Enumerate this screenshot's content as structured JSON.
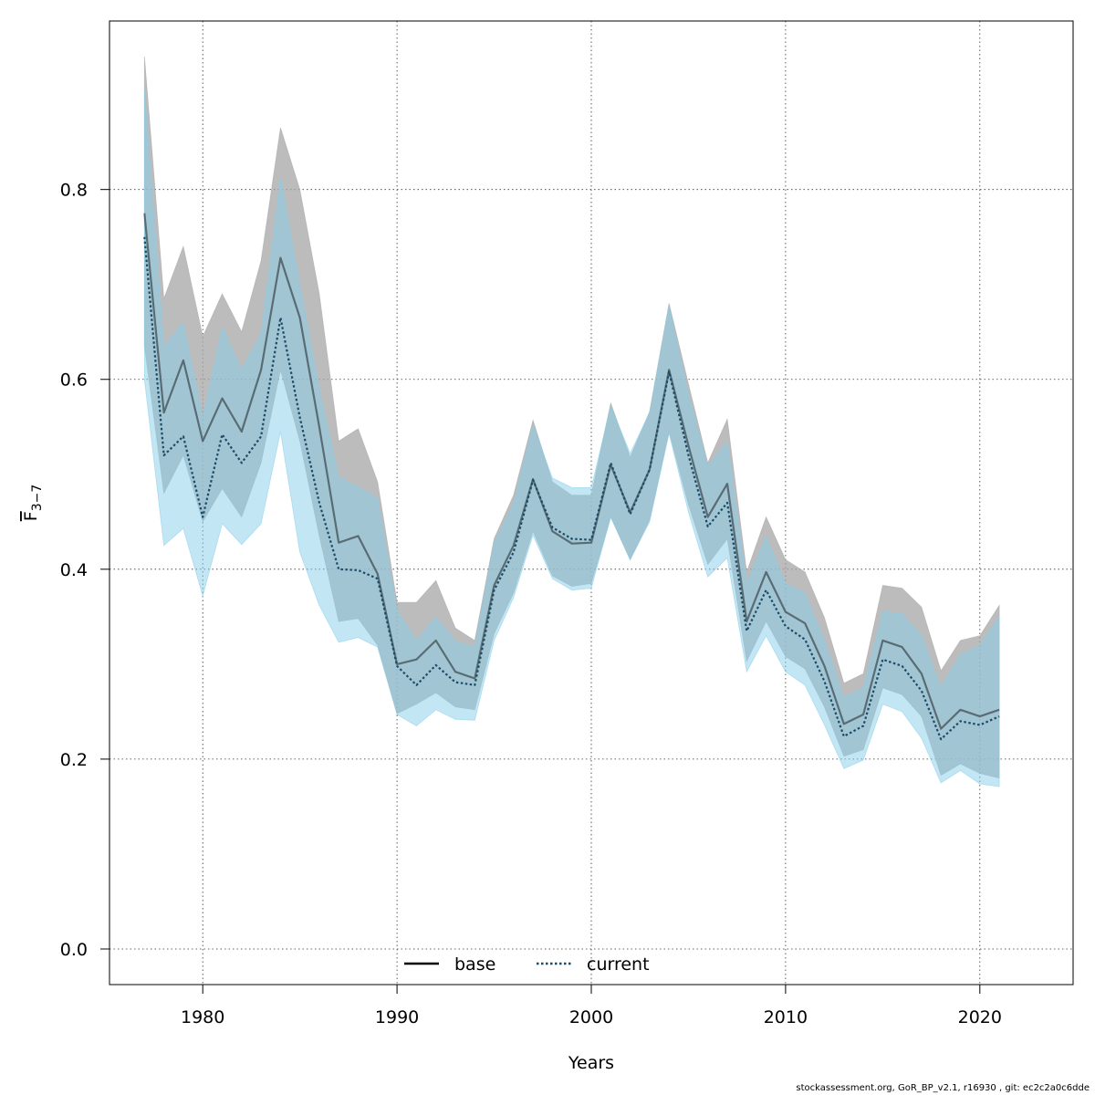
{
  "chart_data": {
    "type": "line",
    "title": "",
    "xlabel": "Years",
    "ylabel_main": "F",
    "ylabel_sub": "3−7",
    "xlim": [
      1975.2,
      2024.8
    ],
    "ylim": [
      -0.0375,
      0.9775
    ],
    "xticks": [
      1980,
      1990,
      2000,
      2010,
      2020
    ],
    "yticks": [
      0.0,
      0.2,
      0.4,
      0.6,
      0.8
    ],
    "ytick_labels": [
      "0.0",
      "0.2",
      "0.4",
      "0.6",
      "0.8"
    ],
    "grid": true,
    "legend": {
      "position": "bottom-center",
      "entries": [
        "base",
        "current"
      ]
    },
    "colors": {
      "base_line": "#000000",
      "base_band": "#a6a6a6",
      "current_line": "#1a4c66",
      "current_band": "#87ceeb"
    },
    "x": [
      1977,
      1978,
      1979,
      1980,
      1981,
      1982,
      1983,
      1984,
      1985,
      1986,
      1987,
      1988,
      1989,
      1990,
      1991,
      1992,
      1993,
      1994,
      1995,
      1996,
      1997,
      1998,
      1999,
      2000,
      2001,
      2002,
      2003,
      2004,
      2005,
      2006,
      2007,
      2008,
      2009,
      2010,
      2011,
      2012,
      2013,
      2014,
      2015,
      2016,
      2017,
      2018,
      2019,
      2020,
      2021
    ],
    "series": [
      {
        "name": "base",
        "style": "solid",
        "values": [
          0.775,
          0.565,
          0.62,
          0.535,
          0.58,
          0.545,
          0.61,
          0.728,
          0.665,
          0.55,
          0.428,
          0.435,
          0.395,
          0.3,
          0.305,
          0.325,
          0.292,
          0.285,
          0.383,
          0.425,
          0.495,
          0.44,
          0.427,
          0.428,
          0.51,
          0.46,
          0.505,
          0.61,
          0.53,
          0.455,
          0.49,
          0.345,
          0.397,
          0.355,
          0.343,
          0.298,
          0.237,
          0.247,
          0.325,
          0.318,
          0.29,
          0.232,
          0.252,
          0.245,
          0.252
        ],
        "lower": [
          0.635,
          0.48,
          0.52,
          0.45,
          0.485,
          0.455,
          0.512,
          0.61,
          0.535,
          0.435,
          0.345,
          0.348,
          0.32,
          0.248,
          0.258,
          0.27,
          0.255,
          0.252,
          0.332,
          0.375,
          0.44,
          0.393,
          0.382,
          0.385,
          0.455,
          0.41,
          0.452,
          0.545,
          0.468,
          0.405,
          0.432,
          0.303,
          0.345,
          0.308,
          0.295,
          0.255,
          0.203,
          0.21,
          0.275,
          0.268,
          0.245,
          0.183,
          0.195,
          0.185,
          0.18
        ],
        "upper": [
          0.94,
          0.685,
          0.74,
          0.645,
          0.69,
          0.65,
          0.725,
          0.865,
          0.8,
          0.69,
          0.535,
          0.548,
          0.492,
          0.365,
          0.365,
          0.388,
          0.338,
          0.325,
          0.432,
          0.478,
          0.557,
          0.492,
          0.478,
          0.478,
          0.575,
          0.518,
          0.566,
          0.68,
          0.595,
          0.512,
          0.558,
          0.397,
          0.455,
          0.41,
          0.397,
          0.349,
          0.28,
          0.29,
          0.383,
          0.38,
          0.36,
          0.293,
          0.325,
          0.33,
          0.362
        ]
      },
      {
        "name": "current",
        "style": "dotted",
        "values": [
          0.75,
          0.52,
          0.54,
          0.455,
          0.542,
          0.512,
          0.54,
          0.665,
          0.56,
          0.47,
          0.4,
          0.399,
          0.39,
          0.298,
          0.278,
          0.299,
          0.281,
          0.278,
          0.378,
          0.418,
          0.494,
          0.444,
          0.432,
          0.431,
          0.512,
          0.458,
          0.505,
          0.608,
          0.52,
          0.445,
          0.47,
          0.335,
          0.378,
          0.34,
          0.326,
          0.282,
          0.224,
          0.235,
          0.305,
          0.298,
          0.272,
          0.221,
          0.24,
          0.236,
          0.245
        ],
        "lower": [
          0.6,
          0.425,
          0.443,
          0.372,
          0.448,
          0.426,
          0.448,
          0.545,
          0.418,
          0.362,
          0.323,
          0.328,
          0.318,
          0.247,
          0.235,
          0.252,
          0.242,
          0.241,
          0.325,
          0.37,
          0.436,
          0.39,
          0.378,
          0.38,
          0.455,
          0.41,
          0.45,
          0.543,
          0.46,
          0.392,
          0.412,
          0.292,
          0.33,
          0.292,
          0.278,
          0.236,
          0.19,
          0.199,
          0.258,
          0.25,
          0.222,
          0.175,
          0.188,
          0.174,
          0.171
        ],
        "upper": [
          0.905,
          0.635,
          0.66,
          0.56,
          0.655,
          0.61,
          0.648,
          0.813,
          0.7,
          0.59,
          0.497,
          0.487,
          0.475,
          0.357,
          0.325,
          0.35,
          0.324,
          0.318,
          0.428,
          0.47,
          0.552,
          0.496,
          0.486,
          0.486,
          0.572,
          0.522,
          0.565,
          0.677,
          0.585,
          0.508,
          0.535,
          0.385,
          0.435,
          0.385,
          0.375,
          0.325,
          0.265,
          0.275,
          0.356,
          0.353,
          0.33,
          0.276,
          0.31,
          0.32,
          0.35
        ]
      }
    ]
  },
  "footer": "stockassessment.org, GoR_BP_v2.1, r16930 , git: ec2c2a0c6dde"
}
